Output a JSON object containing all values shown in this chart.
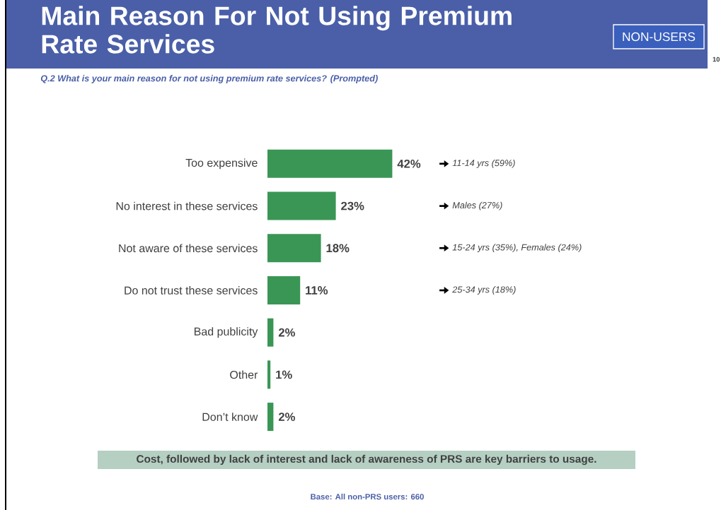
{
  "chart_data": {
    "type": "bar",
    "orientation": "horizontal",
    "title": "Main Reason For Not Using Premium Rate Services",
    "subtitle": "Q.2    What is your main reason for not using premium rate services?  (Prompted)",
    "categories": [
      "Too expensive",
      "No interest in these services",
      "Not aware of these services",
      "Do not trust these services",
      "Bad publicity",
      "Other",
      "Don’t know"
    ],
    "values": [
      42,
      23,
      18,
      11,
      2,
      1,
      2
    ],
    "value_labels": [
      "42%",
      "23%",
      "18%",
      "11%",
      "2%",
      "1%",
      "2%"
    ],
    "color": "#3a9655",
    "annotations": [
      "11-14 yrs (59%)",
      "Males (27%)",
      "15-24 yrs (35%), Females (24%)",
      "25-34 yrs (18%)",
      "NON-USERS",
      "10",
      "Cost, followed by lack of interest and lack of awareness of PRS are key barriers to usage.",
      "Base:  All non-PRS users:  660"
    ]
  }
}
